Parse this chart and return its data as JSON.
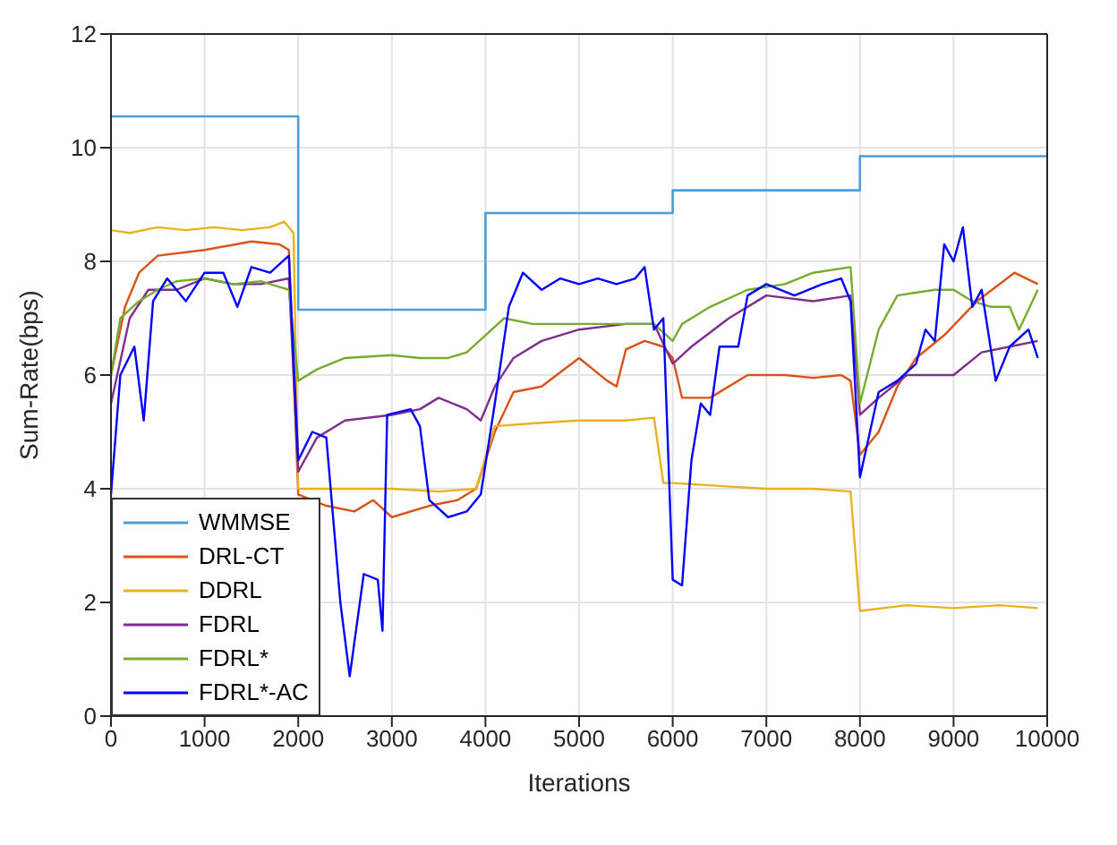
{
  "chart_data": {
    "type": "line",
    "xlabel": "Iterations",
    "ylabel": "Sum-Rate(bps)",
    "xlim": [
      0,
      10000
    ],
    "xticks": [
      0,
      1000,
      2000,
      3000,
      4000,
      5000,
      6000,
      7000,
      8000,
      9000,
      10000
    ],
    "ylim": [
      0,
      12
    ],
    "yticks": [
      0,
      2,
      4,
      6,
      8,
      10,
      12
    ],
    "grid": true,
    "legend": "bottom left",
    "marker": "none",
    "line_style": "solid",
    "series": [
      {
        "name": "WMMSE",
        "type": "step",
        "color": "#4a9fd8",
        "x": [
          0,
          2000,
          4000,
          6000,
          8000,
          10000
        ],
        "values": [
          10.55,
          7.15,
          8.85,
          9.25,
          9.85,
          9.85
        ]
      },
      {
        "name": "DRL-CT",
        "color": "#d95319",
        "x": [
          0,
          150,
          300,
          500,
          1000,
          1500,
          1800,
          1900,
          2000,
          2300,
          2600,
          2800,
          3000,
          3400,
          3700,
          3900,
          4100,
          4300,
          4600,
          5000,
          5300,
          5400,
          5500,
          5700,
          5900,
          6000,
          6100,
          6400,
          6800,
          7200,
          7500,
          7800,
          7900,
          8000,
          8200,
          8400,
          8600,
          8900,
          9250,
          9650,
          9900
        ],
        "values": [
          6.0,
          7.2,
          7.8,
          8.1,
          8.2,
          8.35,
          8.3,
          8.2,
          3.9,
          3.7,
          3.6,
          3.8,
          3.5,
          3.7,
          3.8,
          4.0,
          5.0,
          5.7,
          5.8,
          6.3,
          5.9,
          5.8,
          6.45,
          6.6,
          6.5,
          6.3,
          5.6,
          5.6,
          6.0,
          6.0,
          5.95,
          6.0,
          5.9,
          4.6,
          5.0,
          5.8,
          6.3,
          6.7,
          7.3,
          7.8,
          7.6
        ]
      },
      {
        "name": "DDRL",
        "color": "#edb120",
        "x": [
          0,
          200,
          500,
          800,
          1100,
          1400,
          1700,
          1850,
          1950,
          2000,
          2500,
          3000,
          3500,
          3900,
          4100,
          4500,
          5000,
          5500,
          5800,
          5900,
          6000,
          6500,
          7000,
          7500,
          7900,
          8000,
          8500,
          9000,
          9500,
          9900
        ],
        "values": [
          8.55,
          8.5,
          8.6,
          8.55,
          8.6,
          8.55,
          8.6,
          8.7,
          8.5,
          4.0,
          4.0,
          4.0,
          3.95,
          4.0,
          5.1,
          5.15,
          5.2,
          5.2,
          5.25,
          4.1,
          4.1,
          4.05,
          4.0,
          4.0,
          3.95,
          1.85,
          1.95,
          1.9,
          1.95,
          1.9
        ]
      },
      {
        "name": "FDRL",
        "color": "#7e2f8e",
        "x": [
          0,
          200,
          400,
          700,
          1000,
          1300,
          1600,
          1900,
          2000,
          2200,
          2500,
          3000,
          3300,
          3500,
          3800,
          3950,
          4100,
          4300,
          4600,
          5000,
          5500,
          5800,
          6000,
          6200,
          6600,
          7000,
          7500,
          7900,
          8000,
          8200,
          8500,
          9000,
          9300,
          9600,
          9900
        ],
        "values": [
          5.5,
          7.0,
          7.5,
          7.5,
          7.7,
          7.6,
          7.6,
          7.7,
          4.3,
          4.9,
          5.2,
          5.3,
          5.4,
          5.6,
          5.4,
          5.2,
          5.8,
          6.3,
          6.6,
          6.8,
          6.9,
          6.9,
          6.2,
          6.5,
          7.0,
          7.4,
          7.3,
          7.4,
          5.3,
          5.6,
          6.0,
          6.0,
          6.4,
          6.5,
          6.6
        ]
      },
      {
        "name": "FDRL*",
        "color": "#77ac30",
        "x": [
          0,
          100,
          300,
          500,
          700,
          1000,
          1300,
          1600,
          1900,
          2000,
          2200,
          2500,
          3000,
          3300,
          3600,
          3800,
          4000,
          4200,
          4500,
          5000,
          5500,
          5800,
          6000,
          6100,
          6400,
          6800,
          7200,
          7500,
          7900,
          8000,
          8200,
          8400,
          8800,
          9000,
          9200,
          9400,
          9600,
          9700,
          9900
        ],
        "values": [
          6.0,
          7.0,
          7.3,
          7.5,
          7.65,
          7.7,
          7.6,
          7.65,
          7.5,
          5.9,
          6.1,
          6.3,
          6.35,
          6.3,
          6.3,
          6.4,
          6.7,
          7.0,
          6.9,
          6.9,
          6.9,
          6.9,
          6.6,
          6.9,
          7.2,
          7.5,
          7.6,
          7.8,
          7.9,
          5.5,
          6.8,
          7.4,
          7.5,
          7.5,
          7.3,
          7.2,
          7.2,
          6.8,
          7.5
        ]
      },
      {
        "name": "FDRL*-AC",
        "color": "#0000ff",
        "x": [
          0,
          100,
          250,
          350,
          450,
          600,
          800,
          1000,
          1200,
          1350,
          1500,
          1700,
          1900,
          2000,
          2150,
          2300,
          2450,
          2550,
          2700,
          2850,
          2900,
          2950,
          3200,
          3300,
          3400,
          3600,
          3800,
          3950,
          4100,
          4250,
          4400,
          4600,
          4800,
          5000,
          5200,
          5400,
          5600,
          5700,
          5800,
          5900,
          6000,
          6100,
          6200,
          6300,
          6400,
          6500,
          6700,
          6800,
          7000,
          7300,
          7600,
          7800,
          7900,
          8000,
          8200,
          8400,
          8600,
          8700,
          8800,
          8900,
          9000,
          9100,
          9200,
          9300,
          9450,
          9600,
          9800,
          9900
        ],
        "values": [
          3.9,
          6.0,
          6.5,
          5.2,
          7.3,
          7.7,
          7.3,
          7.8,
          7.8,
          7.2,
          7.9,
          7.8,
          8.1,
          4.5,
          5.0,
          4.9,
          2.0,
          0.7,
          2.5,
          2.4,
          1.5,
          5.3,
          5.4,
          5.1,
          3.8,
          3.5,
          3.6,
          3.9,
          5.5,
          7.2,
          7.8,
          7.5,
          7.7,
          7.6,
          7.7,
          7.6,
          7.7,
          7.9,
          6.8,
          7.0,
          2.4,
          2.3,
          4.5,
          5.5,
          5.3,
          6.5,
          6.5,
          7.4,
          7.6,
          7.4,
          7.6,
          7.7,
          7.3,
          4.2,
          5.7,
          5.9,
          6.2,
          6.8,
          6.6,
          8.3,
          8.0,
          8.6,
          7.2,
          7.5,
          5.9,
          6.5,
          6.8,
          6.3
        ]
      }
    ]
  }
}
